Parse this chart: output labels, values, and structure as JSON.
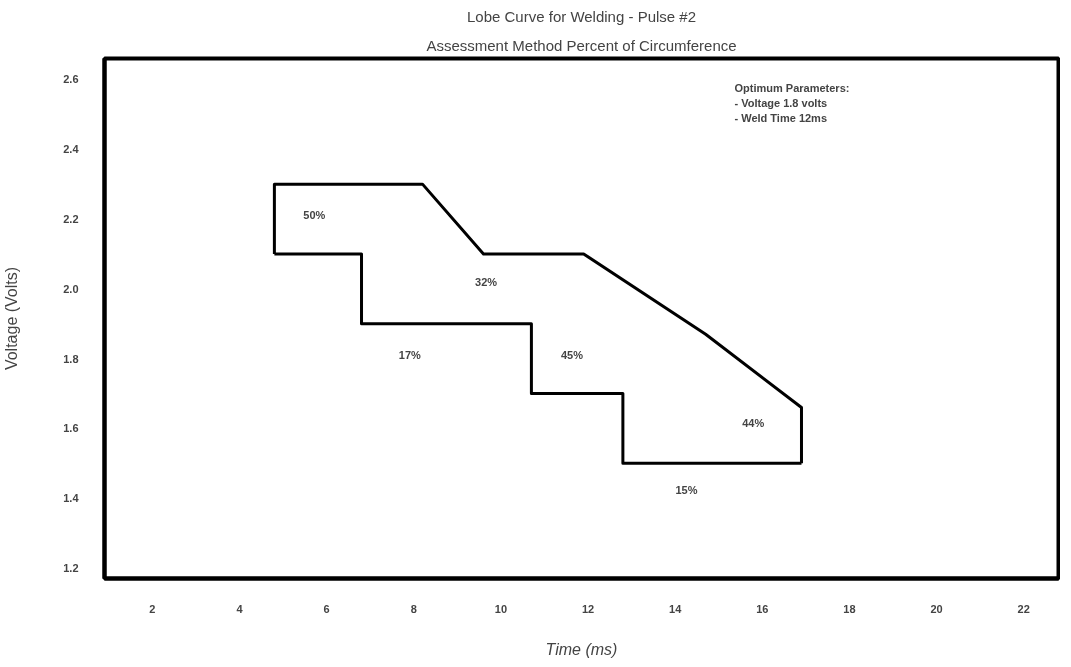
{
  "chart_data": {
    "type": "line",
    "title": "Lobe Curve for Welding - Pulse #2",
    "subtitle": "Assessment Method Percent of Circumference",
    "xlabel": "Time (ms)",
    "ylabel": "Voltage (Volts)",
    "series": [
      {
        "color": "#000000",
        "x": [
          4.8,
          4.8,
          8.2,
          9.6,
          11.9,
          14.7,
          16.9,
          16.9
        ],
        "values": [
          2.1,
          2.3,
          2.3,
          2.1,
          2.1,
          1.87,
          1.66,
          1.5
        ]
      },
      {
        "type": "step",
        "color": "#000000",
        "x": [
          4.8,
          6.8,
          10.7,
          12.8,
          16.9
        ],
        "values": [
          2.1,
          1.9,
          1.7,
          1.5,
          1.5
        ]
      }
    ],
    "xlim": [
      0.9,
      22.8
    ],
    "ylim": [
      1.17,
      2.66
    ],
    "xticks": [
      2,
      4,
      6,
      8,
      10,
      12,
      14,
      16,
      18,
      20,
      22
    ],
    "yticks": [
      {
        "value": 1.2,
        "label": "1.2"
      },
      {
        "value": 1.4,
        "label": "1.4"
      },
      {
        "value": 1.6,
        "label": "1.6"
      },
      {
        "value": 1.8,
        "label": "1.8"
      },
      {
        "value": 2.0,
        "label": "2.0"
      },
      {
        "value": 2.2,
        "label": "2.2"
      },
      {
        "value": 2.4,
        "label": "2.4"
      },
      {
        "value": 2.6,
        "label": "2.6"
      }
    ],
    "annotations": [
      "50%",
      "32%",
      "17%",
      "45%",
      "44%",
      "15%",
      "Optimum Parameters:",
      "- Voltage 1.8 volts",
      "- Weld Time 12ms"
    ],
    "grid": false,
    "marker": "none",
    "line_style": "solid"
  }
}
